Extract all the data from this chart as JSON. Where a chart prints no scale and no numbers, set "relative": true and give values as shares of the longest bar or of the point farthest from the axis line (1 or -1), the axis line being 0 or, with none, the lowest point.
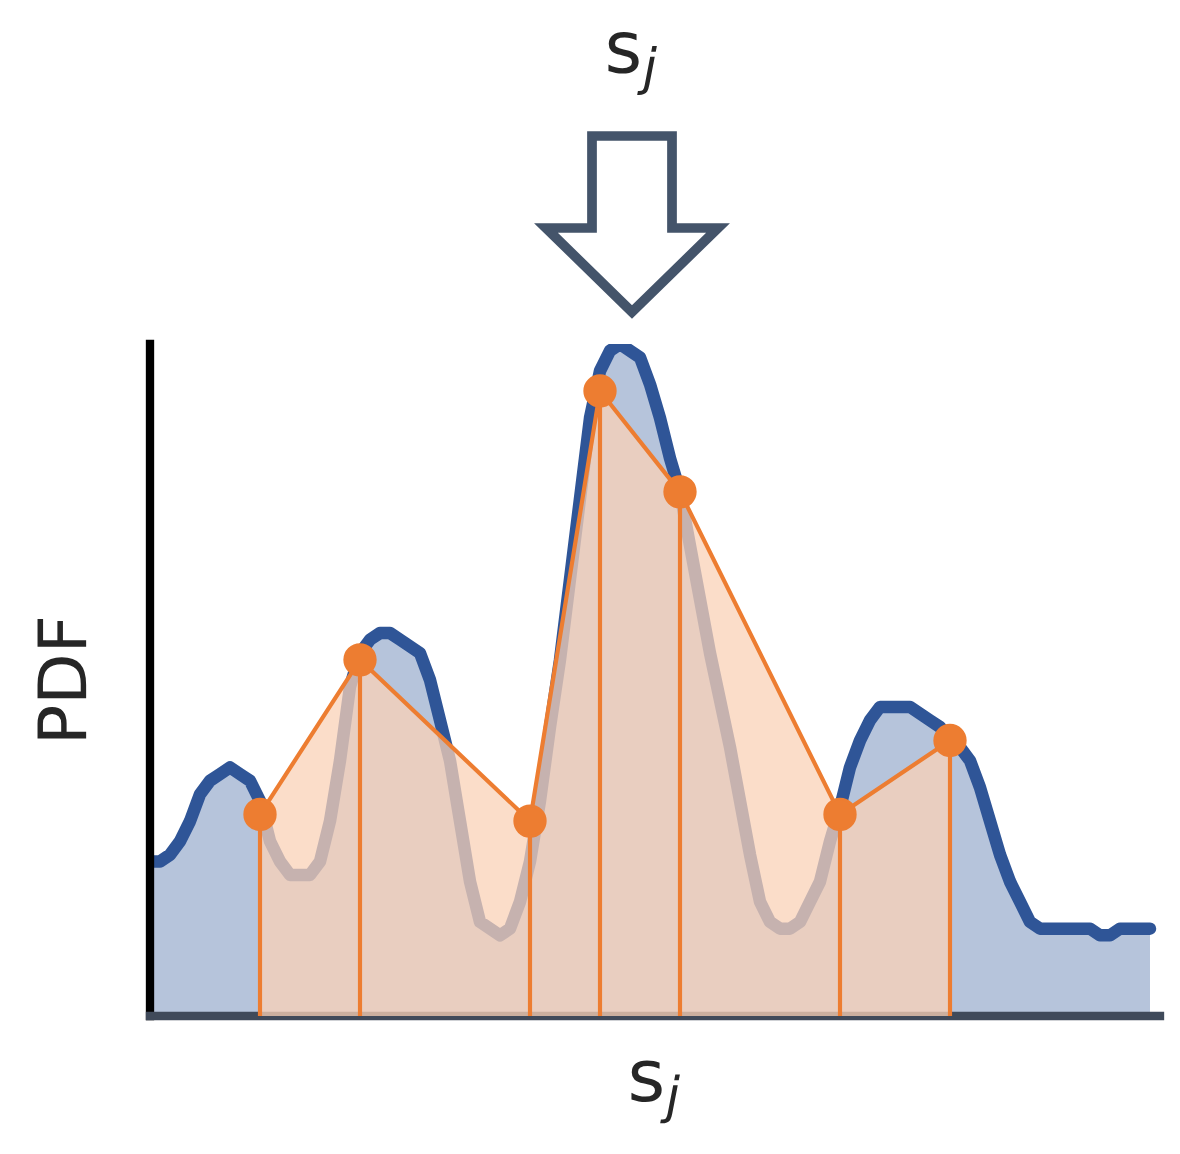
{
  "chart_data": {
    "type": "area",
    "title": "s$_{j}$",
    "xlabel": "s$_{j}$",
    "ylabel": "PDF",
    "relative": true,
    "grid": false,
    "legend": false,
    "categories": [
      null,
      null,
      null,
      null,
      null,
      null,
      null,
      null,
      null,
      null,
      null,
      null,
      null,
      null,
      null,
      null,
      null,
      null,
      null,
      null,
      null,
      null,
      null,
      null,
      null,
      null,
      null,
      null,
      null,
      null,
      null,
      null,
      null,
      null,
      null,
      null,
      null,
      null,
      null,
      null,
      null,
      null,
      null,
      null,
      null,
      null,
      null,
      null,
      null,
      null,
      null,
      null,
      null,
      null,
      null,
      null,
      null,
      null,
      null,
      null,
      null,
      null,
      null,
      null,
      null,
      null,
      null,
      null,
      null,
      null,
      null,
      null,
      null,
      null,
      null,
      null,
      null,
      null,
      null,
      null,
      null,
      null,
      null,
      null,
      null,
      null,
      null,
      null,
      null,
      null,
      null,
      null,
      null,
      null,
      null,
      null,
      null,
      null,
      null,
      null,
      null
    ],
    "series": [
      {
        "color": "#2f5597",
        "marker": "none",
        "values": [
          0.23,
          0.23,
          0.24,
          0.26,
          0.29,
          0.33,
          0.35,
          0.36,
          0.37,
          0.36,
          0.35,
          0.32,
          0.26,
          0.23,
          0.21,
          0.21,
          0.21,
          0.23,
          0.29,
          0.38,
          0.49,
          0.54,
          0.56,
          0.57,
          0.57,
          0.56,
          0.55,
          0.54,
          0.5,
          0.44,
          0.38,
          0.29,
          0.2,
          0.14,
          0.13,
          0.12,
          0.13,
          0.17,
          0.23,
          0.32,
          0.43,
          0.53,
          0.65,
          0.77,
          0.89,
          0.96,
          0.99,
          1.0,
          0.99,
          0.98,
          0.94,
          0.89,
          0.83,
          0.78,
          0.7,
          0.62,
          0.54,
          0.47,
          0.4,
          0.32,
          0.24,
          0.17,
          0.14,
          0.13,
          0.13,
          0.14,
          0.17,
          0.2,
          0.26,
          0.31,
          0.37,
          0.41,
          0.44,
          0.46,
          0.46,
          0.46,
          0.46,
          0.45,
          0.44,
          0.43,
          0.41,
          0.4,
          0.38,
          0.34,
          0.29,
          0.24,
          0.2,
          0.17,
          0.14,
          0.13,
          0.13,
          0.13,
          0.13,
          0.13,
          0.13,
          0.12,
          0.12,
          0.13,
          0.13,
          0.13,
          0.13
        ]
      },
      {
        "color": "#ed7d31",
        "marker": "circle",
        "values": [
          null,
          null,
          null,
          null,
          null,
          null,
          null,
          null,
          null,
          null,
          null,
          0.3,
          null,
          null,
          null,
          null,
          null,
          null,
          null,
          null,
          null,
          0.53,
          null,
          null,
          null,
          null,
          null,
          null,
          null,
          null,
          null,
          null,
          null,
          null,
          null,
          null,
          null,
          null,
          0.29,
          null,
          null,
          null,
          null,
          null,
          null,
          0.93,
          null,
          null,
          null,
          null,
          null,
          null,
          null,
          0.78,
          null,
          null,
          null,
          null,
          null,
          null,
          null,
          null,
          null,
          null,
          null,
          null,
          null,
          null,
          null,
          0.3,
          null,
          null,
          null,
          null,
          null,
          null,
          null,
          null,
          null,
          null,
          0.41,
          null,
          null,
          null,
          null,
          null,
          null,
          null,
          null,
          null,
          null,
          null,
          null,
          null,
          null,
          null,
          null,
          null,
          null,
          null,
          null
        ]
      }
    ]
  }
}
